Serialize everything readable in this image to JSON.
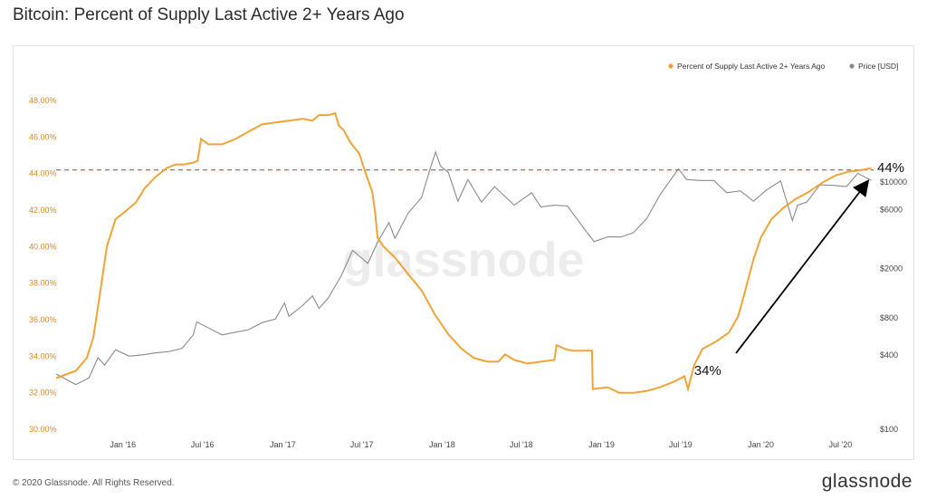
{
  "title": "Bitcoin: Percent of Supply Last Active 2+ Years Ago",
  "footer": {
    "copyright": "© 2020 Glassnode. All Rights Reserved.",
    "brand": "glassnode"
  },
  "watermark": "glassnode",
  "colors": {
    "supply": "#f0a436",
    "price": "#8a8a8a",
    "reference": "#d9525e",
    "axis_left": "#d48b1a",
    "arrow": "#000000"
  },
  "chart_data": {
    "type": "line",
    "title": "Bitcoin: Percent of Supply Last Active 2+ Years Ago",
    "x_ticks": [
      "Jan '16",
      "Jul '16",
      "Jan '17",
      "Jul '17",
      "Jan '18",
      "Jul '18",
      "Jan '19",
      "Jul '19",
      "Jan '20",
      "Jul '20"
    ],
    "x_range": [
      "2015-08-01",
      "2020-09-15"
    ],
    "y_left": {
      "ticks": [
        "30.00%",
        "32.00%",
        "34.00%",
        "36.00%",
        "38.00%",
        "40.00%",
        "42.00%",
        "44.00%",
        "46.00%",
        "48.00%"
      ],
      "range": [
        30,
        48
      ]
    },
    "y_right": {
      "scale": "log",
      "ticks": [
        "$100",
        "$400",
        "$800",
        "$2000",
        "$6000",
        "$10000"
      ],
      "range": [
        100,
        20000
      ]
    },
    "legend": {
      "position": "top-right",
      "items": [
        "Percent of Supply Last Active 2+ Years Ago",
        "Price [USD]"
      ]
    },
    "reference_line": {
      "y": 44.2,
      "style": "dashed"
    },
    "annotations": [
      {
        "text": "34%",
        "x": "2019-08-01",
        "y": 33.0
      },
      {
        "text": "44%",
        "x": "2020-08-15",
        "y": 44.6
      }
    ],
    "series": [
      {
        "name": "Percent of Supply Last Active 2+ Years Ago",
        "axis": "left",
        "points": [
          [
            "2015-08-01",
            32.8
          ],
          [
            "2015-09-15",
            33.2
          ],
          [
            "2015-10-10",
            33.9
          ],
          [
            "2015-10-25",
            35.0
          ],
          [
            "2015-11-10",
            37.5
          ],
          [
            "2015-11-25",
            40.0
          ],
          [
            "2015-12-15",
            41.5
          ],
          [
            "2016-01-10",
            42.0
          ],
          [
            "2016-01-30",
            42.4
          ],
          [
            "2016-02-20",
            43.2
          ],
          [
            "2016-03-15",
            43.8
          ],
          [
            "2016-04-10",
            44.3
          ],
          [
            "2016-05-01",
            44.5
          ],
          [
            "2016-05-20",
            44.5
          ],
          [
            "2016-06-10",
            44.6
          ],
          [
            "2016-06-20",
            44.7
          ],
          [
            "2016-06-28",
            45.9
          ],
          [
            "2016-07-15",
            45.6
          ],
          [
            "2016-08-15",
            45.6
          ],
          [
            "2016-09-15",
            45.9
          ],
          [
            "2016-10-15",
            46.3
          ],
          [
            "2016-11-15",
            46.7
          ],
          [
            "2016-12-15",
            46.8
          ],
          [
            "2017-01-15",
            46.9
          ],
          [
            "2017-02-15",
            47.0
          ],
          [
            "2017-03-10",
            46.9
          ],
          [
            "2017-03-25",
            47.2
          ],
          [
            "2017-04-15",
            47.2
          ],
          [
            "2017-05-01",
            47.3
          ],
          [
            "2017-05-10",
            46.6
          ],
          [
            "2017-05-20",
            46.4
          ],
          [
            "2017-06-05",
            45.7
          ],
          [
            "2017-06-25",
            45.1
          ],
          [
            "2017-07-10",
            44.0
          ],
          [
            "2017-07-25",
            43.0
          ],
          [
            "2017-08-01",
            41.8
          ],
          [
            "2017-08-06",
            40.5
          ],
          [
            "2017-08-20",
            40.0
          ],
          [
            "2017-09-15",
            39.4
          ],
          [
            "2017-10-15",
            38.5
          ],
          [
            "2017-11-15",
            37.6
          ],
          [
            "2017-12-15",
            36.3
          ],
          [
            "2018-01-15",
            35.2
          ],
          [
            "2018-02-15",
            34.4
          ],
          [
            "2018-03-15",
            33.9
          ],
          [
            "2018-04-15",
            33.7
          ],
          [
            "2018-05-10",
            33.7
          ],
          [
            "2018-05-25",
            34.1
          ],
          [
            "2018-06-15",
            33.8
          ],
          [
            "2018-07-15",
            33.6
          ],
          [
            "2018-08-15",
            33.7
          ],
          [
            "2018-09-15",
            33.8
          ],
          [
            "2018-09-20",
            34.6
          ],
          [
            "2018-10-10",
            34.4
          ],
          [
            "2018-10-25",
            34.3
          ],
          [
            "2018-11-15",
            34.3
          ],
          [
            "2018-12-10",
            34.3
          ],
          [
            "2018-12-12",
            32.2
          ],
          [
            "2019-01-15",
            32.3
          ],
          [
            "2019-02-10",
            32.0
          ],
          [
            "2019-03-15",
            32.0
          ],
          [
            "2019-04-15",
            32.1
          ],
          [
            "2019-05-15",
            32.3
          ],
          [
            "2019-06-15",
            32.6
          ],
          [
            "2019-07-10",
            32.9
          ],
          [
            "2019-07-18",
            32.2
          ],
          [
            "2019-08-01",
            33.5
          ],
          [
            "2019-08-20",
            34.4
          ],
          [
            "2019-09-20",
            34.8
          ],
          [
            "2019-10-20",
            35.3
          ],
          [
            "2019-11-10",
            36.2
          ],
          [
            "2019-11-25",
            37.5
          ],
          [
            "2019-12-15",
            39.3
          ],
          [
            "2020-01-01",
            40.5
          ],
          [
            "2020-01-25",
            41.5
          ],
          [
            "2020-02-20",
            42.1
          ],
          [
            "2020-03-20",
            42.6
          ],
          [
            "2020-04-20",
            43.0
          ],
          [
            "2020-05-20",
            43.5
          ],
          [
            "2020-06-20",
            43.9
          ],
          [
            "2020-07-20",
            44.1
          ],
          [
            "2020-08-20",
            44.2
          ],
          [
            "2020-09-10",
            44.3
          ]
        ]
      },
      {
        "name": "Price [USD]",
        "axis": "right",
        "points": [
          [
            "2015-08-01",
            280
          ],
          [
            "2015-09-15",
            230
          ],
          [
            "2015-10-15",
            260
          ],
          [
            "2015-11-05",
            380
          ],
          [
            "2015-11-20",
            330
          ],
          [
            "2015-12-15",
            440
          ],
          [
            "2016-01-15",
            390
          ],
          [
            "2016-02-15",
            400
          ],
          [
            "2016-03-15",
            415
          ],
          [
            "2016-04-15",
            425
          ],
          [
            "2016-05-15",
            450
          ],
          [
            "2016-06-10",
            580
          ],
          [
            "2016-06-18",
            740
          ],
          [
            "2016-07-15",
            660
          ],
          [
            "2016-08-15",
            580
          ],
          [
            "2016-09-15",
            610
          ],
          [
            "2016-10-15",
            640
          ],
          [
            "2016-11-15",
            730
          ],
          [
            "2016-12-15",
            780
          ],
          [
            "2017-01-05",
            1050
          ],
          [
            "2017-01-15",
            820
          ],
          [
            "2017-02-15",
            1000
          ],
          [
            "2017-03-10",
            1200
          ],
          [
            "2017-03-25",
            950
          ],
          [
            "2017-04-15",
            1150
          ],
          [
            "2017-05-15",
            1750
          ],
          [
            "2017-06-10",
            2800
          ],
          [
            "2017-07-15",
            2200
          ],
          [
            "2017-08-05",
            3200
          ],
          [
            "2017-09-01",
            4700
          ],
          [
            "2017-09-15",
            3500
          ],
          [
            "2017-10-15",
            5600
          ],
          [
            "2017-11-15",
            7500
          ],
          [
            "2017-12-05",
            13000
          ],
          [
            "2017-12-17",
            17500
          ],
          [
            "2017-12-28",
            13500
          ],
          [
            "2018-01-15",
            12000
          ],
          [
            "2018-02-06",
            7000
          ],
          [
            "2018-03-01",
            10500
          ],
          [
            "2018-04-01",
            6900
          ],
          [
            "2018-05-01",
            9200
          ],
          [
            "2018-06-15",
            6500
          ],
          [
            "2018-07-25",
            8200
          ],
          [
            "2018-08-15",
            6300
          ],
          [
            "2018-09-15",
            6500
          ],
          [
            "2018-10-15",
            6400
          ],
          [
            "2018-11-20",
            4300
          ],
          [
            "2018-12-15",
            3300
          ],
          [
            "2019-01-15",
            3600
          ],
          [
            "2019-02-15",
            3600
          ],
          [
            "2019-03-15",
            3900
          ],
          [
            "2019-04-15",
            5100
          ],
          [
            "2019-05-15",
            7900
          ],
          [
            "2019-06-26",
            12800
          ],
          [
            "2019-07-15",
            10500
          ],
          [
            "2019-08-15",
            10300
          ],
          [
            "2019-09-15",
            10300
          ],
          [
            "2019-10-15",
            8200
          ],
          [
            "2019-11-15",
            8500
          ],
          [
            "2019-12-15",
            7000
          ],
          [
            "2020-01-15",
            8700
          ],
          [
            "2020-02-15",
            10200
          ],
          [
            "2020-03-13",
            4900
          ],
          [
            "2020-03-25",
            6500
          ],
          [
            "2020-04-15",
            6900
          ],
          [
            "2020-05-15",
            9500
          ],
          [
            "2020-06-15",
            9400
          ],
          [
            "2020-07-15",
            9200
          ],
          [
            "2020-08-10",
            11800
          ],
          [
            "2020-09-10",
            10300
          ]
        ]
      }
    ]
  }
}
